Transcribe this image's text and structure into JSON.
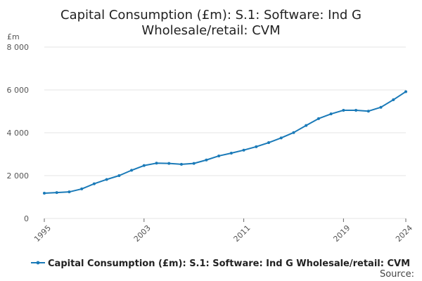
{
  "chart_data": {
    "type": "line",
    "title_lines": [
      "Capital Consumption (£m): S.1: Software: Ind G",
      "Wholesale/retail: CVM"
    ],
    "unit_label": "£m",
    "x": [
      1995,
      1996,
      1997,
      1998,
      1999,
      2000,
      2001,
      2002,
      2003,
      2004,
      2005,
      2006,
      2007,
      2008,
      2009,
      2010,
      2011,
      2012,
      2013,
      2014,
      2015,
      2016,
      2017,
      2018,
      2019,
      2020,
      2021,
      2022,
      2023,
      2024
    ],
    "series": [
      {
        "name": "Capital Consumption (£m): S.1: Software: Ind G Wholesale/retail: CVM",
        "color": "#1a7ab8",
        "values": [
          1180,
          1210,
          1240,
          1380,
          1620,
          1820,
          2000,
          2250,
          2470,
          2580,
          2570,
          2530,
          2570,
          2730,
          2920,
          3050,
          3190,
          3350,
          3540,
          3760,
          4010,
          4340,
          4660,
          4880,
          5050,
          5050,
          5010,
          5190,
          5540,
          5920
        ]
      }
    ],
    "y_ticks": [
      0,
      2000,
      4000,
      6000,
      8000
    ],
    "y_tick_labels": [
      "0",
      "2 000",
      "4 000",
      "6 000",
      "8 000"
    ],
    "ylim": [
      0,
      8000
    ],
    "x_tick_labels": [
      "1995",
      "2003",
      "2011",
      "2019",
      "2024"
    ],
    "xlim": [
      1995,
      2024
    ],
    "legend_position": "bottom",
    "source_label": "Source:"
  }
}
